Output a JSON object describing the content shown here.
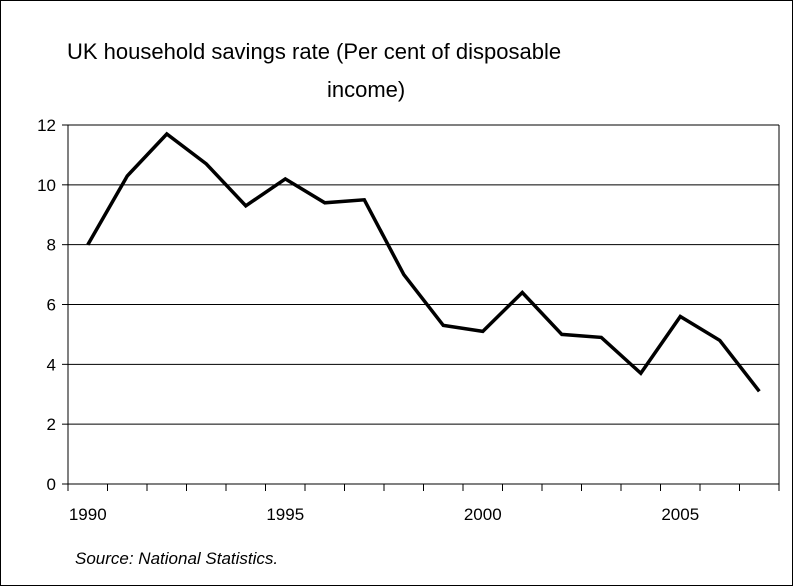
{
  "chart_data": {
    "type": "line",
    "title": "UK household savings rate (Per cent of disposable",
    "title_line2": "income)",
    "source": "Source: National Statistics.",
    "xlabel": "",
    "ylabel": "",
    "x": [
      1990,
      1991,
      1992,
      1993,
      1994,
      1995,
      1996,
      1997,
      1998,
      1999,
      2000,
      2001,
      2002,
      2003,
      2004,
      2005,
      2006,
      2007
    ],
    "series": [
      {
        "values": [
          8.0,
          10.3,
          11.7,
          10.7,
          9.3,
          10.2,
          9.4,
          9.5,
          7.0,
          5.3,
          5.1,
          6.4,
          5.0,
          4.9,
          3.7,
          5.6,
          4.8,
          3.1
        ]
      }
    ],
    "xlim": [
      1990,
      2007
    ],
    "ylim": [
      0,
      12
    ],
    "y_ticks": [
      "0",
      "2",
      "4",
      "6",
      "8",
      "10",
      "12"
    ],
    "x_tick_labels": [
      "1990",
      "1995",
      "2000",
      "2005"
    ],
    "grid": "horizontal",
    "legend": "none",
    "line_color": "#000000"
  }
}
